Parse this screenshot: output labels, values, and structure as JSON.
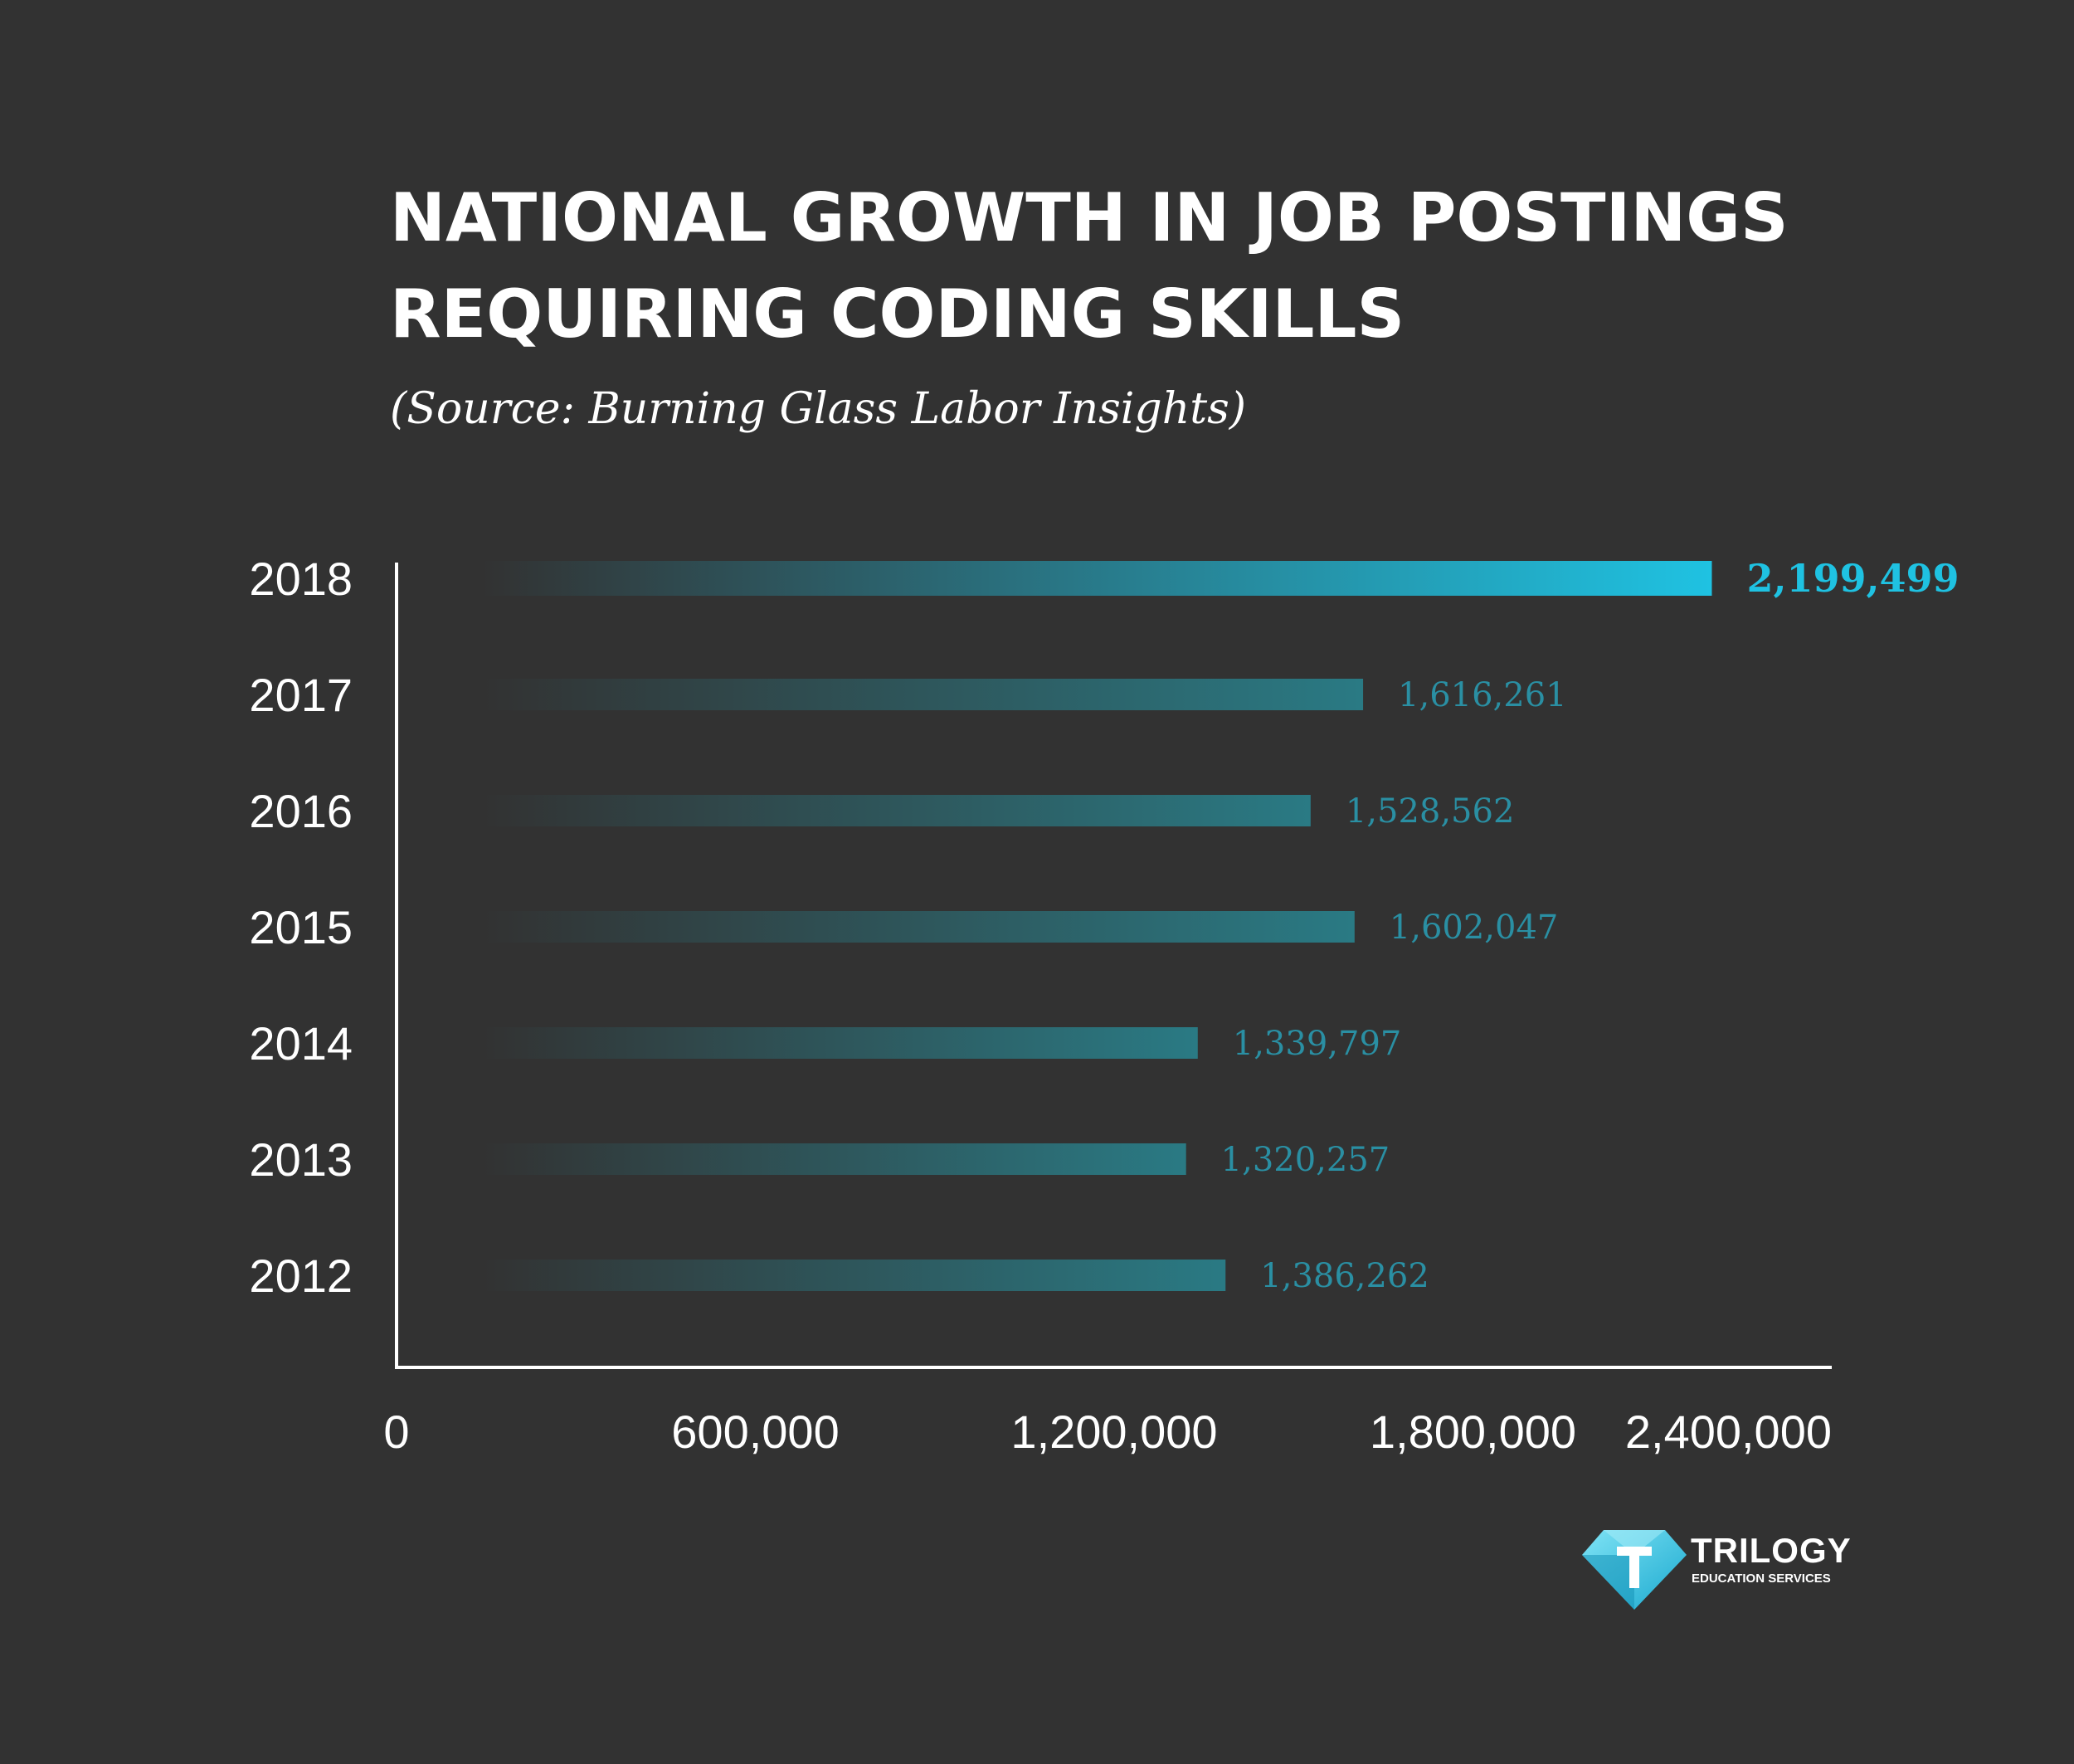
{
  "chart_data": {
    "type": "bar",
    "orientation": "horizontal",
    "title_lines": [
      "NATIONAL GROWTH IN JOB POSTINGS",
      "REQUIRING CODING SKILLS"
    ],
    "subtitle": "(Source: Burning Glass Labor Insights)",
    "categories": [
      "2018",
      "2017",
      "2016",
      "2015",
      "2014",
      "2013",
      "2012"
    ],
    "values": [
      2199499,
      1616261,
      1528562,
      1602047,
      1339797,
      1320257,
      1386262
    ],
    "value_labels": [
      "2,199,499",
      "1,616,261",
      "1,528,562",
      "1,602,047",
      "1,339,797",
      "1,320,257",
      "1,386,262"
    ],
    "highlight_index": 0,
    "xlim": [
      0,
      2400000
    ],
    "x_ticks": [
      0,
      600000,
      1200000,
      1800000,
      2400000
    ],
    "x_tick_labels": [
      "0",
      "600,000",
      "1,200,000",
      "1,800,000",
      "2,400,000"
    ],
    "grid": false,
    "colors": {
      "background": "#323232",
      "bar_start": "#323232",
      "bar_end": "#2a7a84",
      "highlight_end": "#1fc2e2",
      "value_label": "#2a8fa3",
      "highlight_label": "#1fc2e2",
      "axis": "#ffffff"
    }
  },
  "logo": {
    "icon": "trilogy-diamond-icon",
    "name": "TRILOGY",
    "tagline": "EDUCATION SERVICES"
  }
}
